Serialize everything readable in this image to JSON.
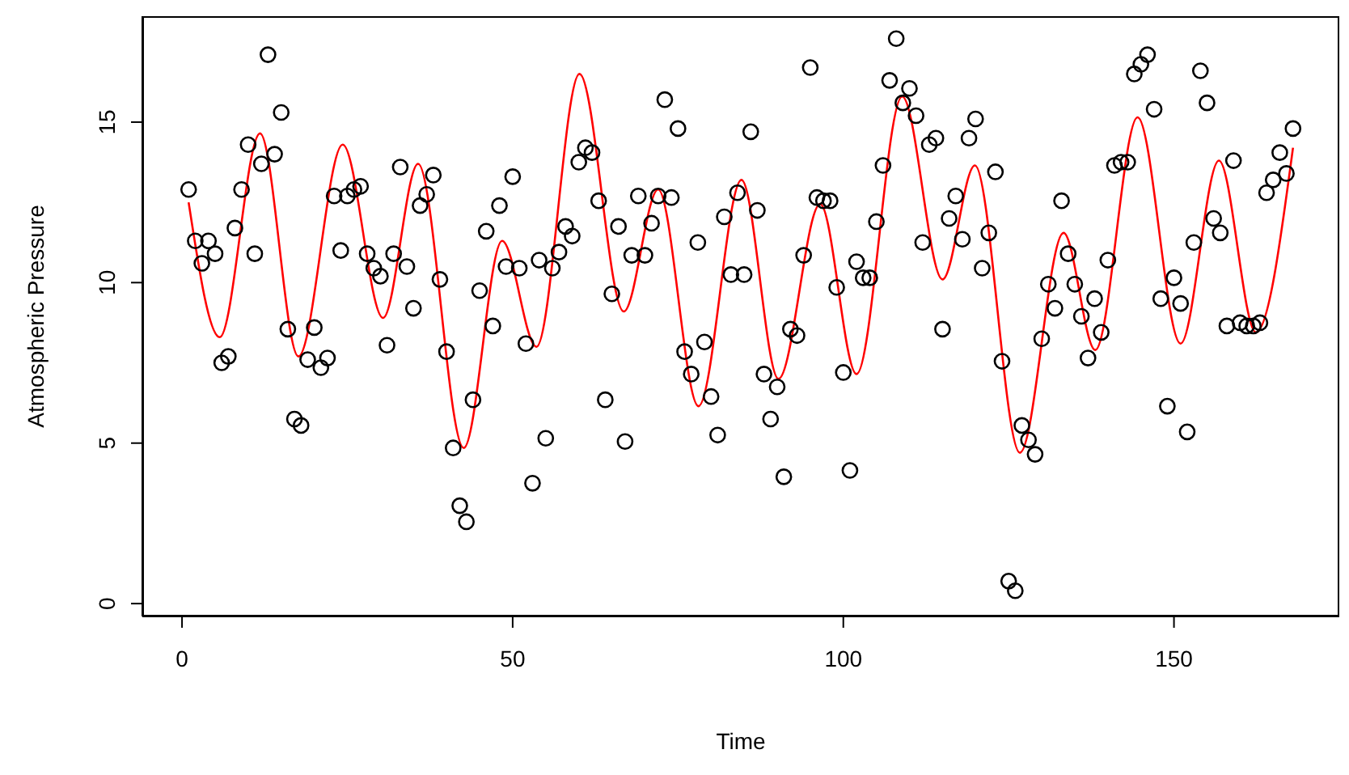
{
  "chart_data": {
    "type": "scatter",
    "xlabel": "Time",
    "ylabel": "Atmospheric Pressure",
    "xlim": [
      -6,
      175
    ],
    "ylim": [
      -0.4,
      18.3
    ],
    "xticks": [
      0,
      50,
      100,
      150
    ],
    "yticks": [
      0,
      5,
      10,
      15
    ],
    "grid": false,
    "legend": false,
    "series": [
      {
        "color": "#000000",
        "marker": "circle",
        "x": [
          1,
          2,
          3,
          4,
          5,
          6,
          7,
          8,
          9,
          10,
          11,
          12,
          13,
          14,
          15,
          16,
          17,
          18,
          19,
          20,
          21,
          22,
          23,
          24,
          25,
          26,
          27,
          28,
          29,
          30,
          31,
          32,
          33,
          34,
          35,
          36,
          37,
          38,
          39,
          40,
          41,
          42,
          43,
          44,
          45,
          46,
          47,
          48,
          49,
          50,
          51,
          52,
          53,
          54,
          55,
          56,
          57,
          58,
          59,
          60,
          61,
          62,
          63,
          64,
          65,
          66,
          67,
          68,
          69,
          70,
          71,
          72,
          73,
          74,
          75,
          76,
          77,
          78,
          79,
          80,
          81,
          82,
          83,
          84,
          85,
          86,
          87,
          88,
          89,
          90,
          91,
          92,
          93,
          94,
          95,
          96,
          97,
          98,
          99,
          100,
          101,
          102,
          103,
          104,
          105,
          106,
          107,
          108,
          109,
          110,
          111,
          112,
          113,
          114,
          115,
          116,
          117,
          118,
          119,
          120,
          121,
          122,
          123,
          124,
          125,
          126,
          127,
          128,
          129,
          130,
          131,
          132,
          133,
          134,
          135,
          136,
          137,
          138,
          139,
          140,
          141,
          142,
          143,
          144,
          145,
          146,
          147,
          148,
          149,
          150,
          151,
          152,
          153,
          154,
          155,
          156,
          157,
          158,
          159,
          160,
          161,
          162,
          163,
          164,
          165,
          166,
          167,
          168
        ],
        "values": [
          12.9,
          11.3,
          10.6,
          11.3,
          10.9,
          7.5,
          7.7,
          11.7,
          12.9,
          14.3,
          10.9,
          13.7,
          17.1,
          14.0,
          15.3,
          8.55,
          5.75,
          5.55,
          7.6,
          8.6,
          7.35,
          7.65,
          12.7,
          11.0,
          12.7,
          12.9,
          13.0,
          10.9,
          10.45,
          10.2,
          8.05,
          10.9,
          13.6,
          10.5,
          9.2,
          12.4,
          12.75,
          13.35,
          10.1,
          7.85,
          4.85,
          3.05,
          2.55,
          6.35,
          9.75,
          11.6,
          8.65,
          12.4,
          10.5,
          13.3,
          10.45,
          8.1,
          3.75,
          10.7,
          5.15,
          10.45,
          10.95,
          11.75,
          11.45,
          13.75,
          14.2,
          14.05,
          12.55,
          6.35,
          9.65,
          11.75,
          5.05,
          10.85,
          12.7,
          10.85,
          11.85,
          12.7,
          15.7,
          12.65,
          14.8,
          7.85,
          7.15,
          11.25,
          8.15,
          6.45,
          5.25,
          12.05,
          10.25,
          12.8,
          10.25,
          14.7,
          12.25,
          7.15,
          5.75,
          6.75,
          3.95,
          8.55,
          8.35,
          10.85,
          16.7,
          12.65,
          12.55,
          12.55,
          9.85,
          7.2,
          4.15,
          10.65,
          10.15,
          10.15,
          11.9,
          13.65,
          16.3,
          17.6,
          15.6,
          16.05,
          15.2,
          11.25,
          14.3,
          14.5,
          8.55,
          12.0,
          12.7,
          11.35,
          14.5,
          15.1,
          10.45,
          11.55,
          13.45,
          7.55,
          0.7,
          0.4,
          5.55,
          5.1,
          4.65,
          8.25,
          9.95,
          9.2,
          12.55,
          10.9,
          9.95,
          8.95,
          7.65,
          9.5,
          8.45,
          10.7,
          13.65,
          13.75,
          13.75,
          16.5,
          16.8,
          17.1,
          15.4,
          9.5,
          6.15,
          10.15,
          9.35,
          5.35,
          11.25,
          16.6,
          15.6,
          12.0,
          11.55,
          8.65,
          13.8,
          8.75,
          8.65,
          8.65,
          8.75,
          12.8,
          13.2,
          14.05,
          13.4,
          14.8
        ]
      },
      {
        "type": "line",
        "color": "#ff0000",
        "marker": "none",
        "line_style": "solid",
        "x": [
          1,
          5.7,
          11.8,
          17.6,
          24.3,
          30.4,
          35.7,
          42.6,
          48.4,
          53.6,
          60.1,
          66.8,
          72,
          78.1,
          84.6,
          90.2,
          96.5,
          102,
          108.9,
          115,
          119.9,
          126.7,
          133.3,
          138.1,
          144.5,
          151,
          156.8,
          162.4,
          168
        ],
        "values": [
          12.5,
          8.3,
          14.65,
          7.7,
          14.3,
          8.9,
          13.7,
          4.85,
          11.3,
          8.0,
          16.5,
          9.1,
          12.9,
          6.15,
          13.2,
          7.0,
          12.45,
          7.15,
          15.8,
          10.1,
          13.65,
          4.7,
          11.55,
          7.9,
          15.15,
          8.1,
          13.8,
          8.45,
          14.2
        ]
      }
    ]
  }
}
